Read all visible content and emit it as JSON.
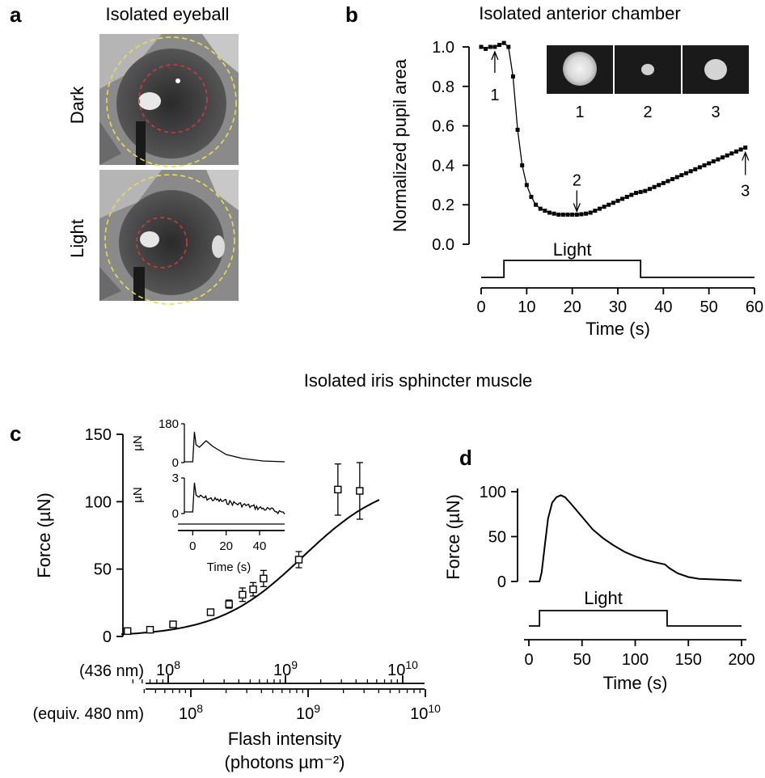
{
  "panels": {
    "a": {
      "letter": "a",
      "title": "Isolated eyeball",
      "dark_label": "Dark",
      "light_label": "Light"
    },
    "b": {
      "letter": "b",
      "title": "Isolated anterior chamber"
    },
    "c": {
      "letter": "c"
    },
    "d": {
      "letter": "d"
    }
  },
  "section_title": "Isolated iris sphincter muscle",
  "colors": {
    "yellow_ring": "#e8e04a",
    "red_ring": "#d23a3a"
  },
  "chart_data": [
    {
      "id": "b",
      "type": "scatter",
      "xlabel": "Time (s)",
      "ylabel": "Normalized pupil area",
      "xlim": [
        0,
        60
      ],
      "ylim": [
        0,
        1.0
      ],
      "xticks": [
        0,
        10,
        20,
        30,
        40,
        50,
        60
      ],
      "yticks": [
        "0.0",
        "0.2",
        "0.4",
        "0.6",
        "0.8",
        "1.0"
      ],
      "x": [
        0,
        1,
        2,
        3,
        4,
        5,
        6,
        7,
        8,
        9,
        10,
        11,
        12,
        13,
        14,
        15,
        16,
        17,
        18,
        19,
        20,
        21,
        22,
        23,
        24,
        25,
        26,
        27,
        28,
        29,
        30,
        31,
        32,
        33,
        34,
        35,
        36,
        37,
        38,
        39,
        40,
        41,
        42,
        43,
        44,
        45,
        46,
        47,
        48,
        49,
        50,
        51,
        52,
        53,
        54,
        55,
        56,
        57,
        58
      ],
      "y": [
        1.0,
        0.99,
        1.0,
        1.0,
        1.01,
        1.02,
        1.0,
        0.85,
        0.58,
        0.4,
        0.3,
        0.24,
        0.2,
        0.18,
        0.17,
        0.16,
        0.155,
        0.15,
        0.15,
        0.15,
        0.15,
        0.15,
        0.152,
        0.155,
        0.16,
        0.17,
        0.18,
        0.19,
        0.2,
        0.21,
        0.22,
        0.23,
        0.24,
        0.25,
        0.26,
        0.265,
        0.27,
        0.28,
        0.29,
        0.3,
        0.31,
        0.32,
        0.33,
        0.34,
        0.35,
        0.36,
        0.37,
        0.38,
        0.39,
        0.4,
        0.41,
        0.42,
        0.43,
        0.44,
        0.45,
        0.46,
        0.47,
        0.48,
        0.49
      ],
      "arrows": [
        {
          "label": "1",
          "x": 3,
          "y": 1.0
        },
        {
          "label": "2",
          "x": 21,
          "y": 0.15
        },
        {
          "label": "3",
          "x": 58,
          "y": 0.49
        }
      ],
      "light_label": "Light",
      "light_on": 5,
      "light_off": 35,
      "inset_labels": [
        "1",
        "2",
        "3"
      ]
    },
    {
      "id": "c",
      "type": "scatter",
      "xlabel": "Flash intensity",
      "xlabel_units": "(photons µm⁻²)",
      "ylabel": "Force (µN)",
      "ylim": [
        0,
        150
      ],
      "yticks": [
        0,
        50,
        100,
        150
      ],
      "xscale": "log",
      "axis_436_label": "(436 nm)",
      "axis_480_label": "(equiv. 480 nm)",
      "top_axis_ticks": [
        "10",
        "10",
        "10"
      ],
      "top_axis_exponents": [
        "8",
        "9",
        "10"
      ],
      "bottom_axis_ticks": [
        "10",
        "10",
        "10"
      ],
      "bottom_axis_exponents": [
        "8",
        "9",
        "10"
      ],
      "x": [
        45000000.0,
        70000000.0,
        110000000.0,
        230000000.0,
        330000000.0,
        430000000.0,
        530000000.0,
        650000000.0,
        1300000000.0,
        2800000000.0,
        4300000000.0
      ],
      "y": [
        4,
        5,
        9,
        18,
        24,
        31,
        35,
        43,
        57,
        109,
        108
      ],
      "err": [
        1,
        1,
        1,
        2,
        3,
        5,
        5,
        6,
        6,
        19,
        21
      ],
      "fit_max": 118,
      "fit_half": 1400000000.0,
      "fit_n": 1.2,
      "inset": {
        "top_yticks": [
          "0",
          "180"
        ],
        "bottom_yticks": [
          "0",
          "3"
        ],
        "ylabel": "µN",
        "xticks": [
          0,
          20,
          40
        ],
        "xlabel": "Time (s)",
        "xlim": [
          -5,
          55
        ]
      }
    },
    {
      "id": "d",
      "type": "line",
      "xlabel": "Time (s)",
      "ylabel": "Force (µN)",
      "xlim": [
        0,
        200
      ],
      "ylim": [
        0,
        100
      ],
      "xticks": [
        0,
        50,
        100,
        150,
        200
      ],
      "yticks": [
        0,
        50,
        100
      ],
      "x": [
        0,
        10,
        12,
        15,
        18,
        22,
        26,
        30,
        34,
        40,
        50,
        60,
        70,
        80,
        90,
        100,
        110,
        120,
        128,
        132,
        140,
        150,
        160,
        180,
        200
      ],
      "y": [
        0,
        0,
        10,
        40,
        70,
        88,
        94,
        96,
        94,
        86,
        72,
        58,
        48,
        40,
        33,
        28,
        24,
        21,
        19,
        15,
        9,
        5,
        3,
        2,
        1
      ],
      "light_label": "Light",
      "light_on": 10,
      "light_off": 130
    }
  ]
}
